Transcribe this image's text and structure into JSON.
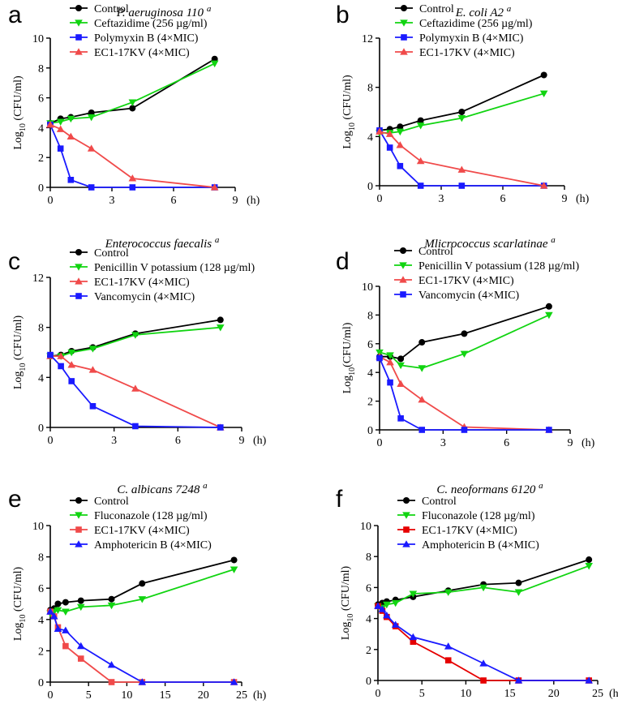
{
  "chart_data": [
    {
      "panel": "a",
      "type": "line",
      "title": "P. aeruginosa 110",
      "title_sup": "a",
      "ylabel": "Log10 (CFU/ml)",
      "ylabel_parts": [
        "Log",
        "10",
        " (CFU/ml)"
      ],
      "x_unit": "(h)",
      "xlim": [
        0,
        9
      ],
      "ylim": [
        0,
        10
      ],
      "xticks": [
        0,
        3,
        6,
        9
      ],
      "yticks": [
        0,
        2,
        4,
        6,
        8,
        10
      ],
      "series": [
        {
          "name": "Control",
          "color": "#000000",
          "marker": "circle",
          "x": [
            0,
            0.5,
            1,
            2,
            4,
            8
          ],
          "y": [
            4.3,
            4.6,
            4.7,
            5.0,
            5.3,
            8.6
          ]
        },
        {
          "name": "Ceftazidime (256 µg/ml)",
          "color": "#11d411",
          "marker": "triangle-down",
          "x": [
            0,
            0.5,
            1,
            2,
            4,
            8
          ],
          "y": [
            4.3,
            4.4,
            4.6,
            4.7,
            5.7,
            8.3
          ]
        },
        {
          "name": "Polymyxin B (4×MIC)",
          "color": "#1a1aff",
          "marker": "square",
          "x": [
            0,
            0.5,
            1,
            2,
            4,
            8
          ],
          "y": [
            4.2,
            2.6,
            0.5,
            0,
            0,
            0
          ]
        },
        {
          "name": "EC1-17KV (4×MIC)",
          "color": "#f04a4a",
          "marker": "triangle-up",
          "x": [
            0,
            0.5,
            1,
            2,
            4,
            8
          ],
          "y": [
            4.2,
            3.9,
            3.4,
            2.6,
            0.6,
            0
          ]
        }
      ]
    },
    {
      "panel": "b",
      "type": "line",
      "title": "E. coli A2",
      "title_sup": "a",
      "ylabel": "Log10 (CFU/ml)",
      "ylabel_parts": [
        "Log",
        "10",
        " (CFU/ml)"
      ],
      "x_unit": "(h)",
      "xlim": [
        0,
        9
      ],
      "ylim": [
        0,
        12
      ],
      "xticks": [
        0,
        3,
        6,
        9
      ],
      "yticks": [
        0,
        4,
        8,
        12
      ],
      "series": [
        {
          "name": "Control",
          "color": "#000000",
          "marker": "circle",
          "x": [
            0,
            0.5,
            1,
            2,
            4,
            8
          ],
          "y": [
            4.5,
            4.6,
            4.8,
            5.3,
            6.0,
            9.0
          ]
        },
        {
          "name": "Ceftazidime (256 µg/ml)",
          "color": "#11d411",
          "marker": "triangle-down",
          "x": [
            0,
            0.5,
            1,
            2,
            4,
            8
          ],
          "y": [
            4.3,
            4.3,
            4.4,
            4.9,
            5.5,
            7.5
          ]
        },
        {
          "name": "Polymyxin B (4×MIC)",
          "color": "#1a1aff",
          "marker": "square",
          "x": [
            0,
            0.5,
            1,
            2,
            4,
            8
          ],
          "y": [
            4.5,
            3.1,
            1.6,
            0,
            0,
            0
          ]
        },
        {
          "name": "EC1-17KV (4×MIC)",
          "color": "#f04a4a",
          "marker": "triangle-up",
          "x": [
            0,
            0.5,
            1,
            2,
            4,
            8
          ],
          "y": [
            4.4,
            4.2,
            3.3,
            2.0,
            1.3,
            0
          ]
        }
      ]
    },
    {
      "panel": "c",
      "type": "line",
      "title": "Enterococcus faecalis",
      "title_sup": "a",
      "ylabel": "Log10 (CFU/ml)",
      "ylabel_parts": [
        "Log",
        "10",
        " (CFU/ml)"
      ],
      "x_unit": "(h)",
      "xlim": [
        0,
        9
      ],
      "ylim": [
        0,
        12
      ],
      "xticks": [
        0,
        3,
        6,
        9
      ],
      "yticks": [
        0,
        4,
        8,
        12
      ],
      "series": [
        {
          "name": "Control",
          "color": "#000000",
          "marker": "circle",
          "x": [
            0,
            0.5,
            1,
            2,
            4,
            8
          ],
          "y": [
            5.7,
            5.8,
            6.1,
            6.4,
            7.5,
            8.6
          ]
        },
        {
          "name": "Penicillin V potassium (128 µg/ml)",
          "color": "#11d411",
          "marker": "triangle-down",
          "x": [
            0,
            0.5,
            1,
            2,
            4,
            8
          ],
          "y": [
            5.7,
            5.7,
            6.0,
            6.3,
            7.4,
            8.0
          ]
        },
        {
          "name": "EC1-17KV (4×MIC)",
          "color": "#f04a4a",
          "marker": "triangle-up",
          "x": [
            0,
            0.5,
            1,
            2,
            4,
            8
          ],
          "y": [
            5.7,
            5.7,
            5.0,
            4.6,
            3.1,
            0
          ]
        },
        {
          "name": "Vancomycin (4×MIC)",
          "color": "#1a1aff",
          "marker": "square",
          "x": [
            0,
            0.5,
            1,
            2,
            4,
            8
          ],
          "y": [
            5.8,
            4.9,
            3.7,
            1.7,
            0.1,
            0
          ]
        }
      ]
    },
    {
      "panel": "d",
      "type": "line",
      "title": "Mlicrococcus scarlatinae",
      "title_sup": "a",
      "ylabel": "Log10 (CFU/ml)",
      "ylabel_parts": [
        "Log",
        "10",
        "(CFU/ml)"
      ],
      "x_unit": "(h)",
      "xlim": [
        0,
        9
      ],
      "ylim": [
        0,
        10
      ],
      "xticks": [
        0,
        3,
        6,
        9
      ],
      "yticks": [
        0,
        2,
        4,
        6,
        8,
        10
      ],
      "series": [
        {
          "name": "Control",
          "color": "#000000",
          "marker": "circle",
          "x": [
            0,
            0.5,
            1,
            2,
            4,
            8
          ],
          "y": [
            5.1,
            5.1,
            4.95,
            6.1,
            6.7,
            8.6
          ]
        },
        {
          "name": "Penicillin V potassium (128 µg/ml)",
          "color": "#11d411",
          "marker": "triangle-down",
          "x": [
            0,
            0.5,
            1,
            2,
            4,
            8
          ],
          "y": [
            5.4,
            5.2,
            4.5,
            4.3,
            5.3,
            8.0
          ]
        },
        {
          "name": "EC1-17KV (4×MIC)",
          "color": "#f04a4a",
          "marker": "triangle-up",
          "x": [
            0,
            0.5,
            1,
            2,
            4,
            8
          ],
          "y": [
            5.1,
            4.7,
            3.2,
            2.1,
            0.2,
            0
          ]
        },
        {
          "name": "Vancomycin (4×MIC)",
          "color": "#1a1aff",
          "marker": "square",
          "x": [
            0,
            0.5,
            1,
            2,
            4,
            8
          ],
          "y": [
            5.0,
            3.3,
            0.8,
            0,
            0,
            0
          ]
        }
      ]
    },
    {
      "panel": "e",
      "type": "line",
      "title": "C. albicans 7248",
      "title_sup": "a",
      "ylabel": "Log10 (CFU/ml)",
      "ylabel_parts": [
        "Log",
        "10",
        " (CFU/ml)"
      ],
      "x_unit": "(h)",
      "xlim": [
        0,
        25
      ],
      "ylim": [
        0,
        10
      ],
      "xticks": [
        0,
        5,
        10,
        15,
        20,
        25
      ],
      "yticks": [
        0,
        2,
        4,
        6,
        8,
        10
      ],
      "series": [
        {
          "name": "Control",
          "color": "#000000",
          "marker": "circle",
          "x": [
            0,
            0.5,
            1,
            2,
            4,
            8,
            12,
            24
          ],
          "y": [
            4.6,
            4.7,
            5.0,
            5.1,
            5.2,
            5.3,
            6.3,
            7.8
          ]
        },
        {
          "name": "Fluconazole (128 µg/ml)",
          "color": "#11d411",
          "marker": "triangle-down",
          "x": [
            0,
            0.5,
            1,
            2,
            4,
            8,
            12,
            24
          ],
          "y": [
            4.4,
            4.5,
            4.6,
            4.5,
            4.8,
            4.9,
            5.3,
            7.2
          ]
        },
        {
          "name": "EC1-17KV (4×MIC)",
          "color": "#f04a4a",
          "marker": "square",
          "x": [
            0,
            0.5,
            1,
            2,
            4,
            8,
            12,
            24
          ],
          "y": [
            4.5,
            4.2,
            3.5,
            2.3,
            1.5,
            0,
            0,
            0
          ]
        },
        {
          "name": "Amphotericin B (4×MIC)",
          "color": "#1a1aff",
          "marker": "triangle-up",
          "x": [
            0,
            0.5,
            1,
            2,
            4,
            8,
            12,
            24
          ],
          "y": [
            4.5,
            4.2,
            3.4,
            3.3,
            2.3,
            1.1,
            0,
            0
          ]
        }
      ]
    },
    {
      "panel": "f",
      "type": "line",
      "title": "C. neoformans 6120",
      "title_sup": "a",
      "ylabel": "Log10 (CFU/ml)",
      "ylabel_parts": [
        "Log",
        "10",
        " (CFU/ml)"
      ],
      "x_unit": "(h)",
      "xlim": [
        0,
        25
      ],
      "ylim": [
        0,
        10
      ],
      "xticks": [
        0,
        5,
        10,
        15,
        20,
        25
      ],
      "yticks": [
        0,
        2,
        4,
        6,
        8,
        10
      ],
      "series": [
        {
          "name": "Control",
          "color": "#000000",
          "marker": "circle",
          "x": [
            0,
            0.5,
            1,
            2,
            4,
            8,
            12,
            16,
            24
          ],
          "y": [
            4.9,
            5.0,
            5.1,
            5.2,
            5.4,
            5.8,
            6.2,
            6.3,
            7.8
          ]
        },
        {
          "name": "Fluconazole (128 µg/ml)",
          "color": "#11d411",
          "marker": "triangle-down",
          "x": [
            0,
            0.5,
            1,
            2,
            4,
            8,
            12,
            16,
            24
          ],
          "y": [
            4.8,
            4.7,
            4.9,
            5.0,
            5.6,
            5.7,
            6.0,
            5.7,
            7.4
          ]
        },
        {
          "name": "EC1-17KV (4×MIC)",
          "color": "#e60000",
          "marker": "square",
          "x": [
            0,
            0.5,
            1,
            2,
            4,
            8,
            12,
            16,
            24
          ],
          "y": [
            4.8,
            4.5,
            4.1,
            3.5,
            2.5,
            1.3,
            0,
            0,
            0
          ]
        },
        {
          "name": "Amphotericin B (4×MIC)",
          "color": "#1a1aff",
          "marker": "triangle-up",
          "x": [
            0,
            0.5,
            1,
            2,
            4,
            8,
            12,
            16,
            24
          ],
          "y": [
            4.8,
            4.6,
            4.2,
            3.6,
            2.8,
            2.2,
            1.1,
            0,
            0
          ]
        }
      ]
    }
  ]
}
